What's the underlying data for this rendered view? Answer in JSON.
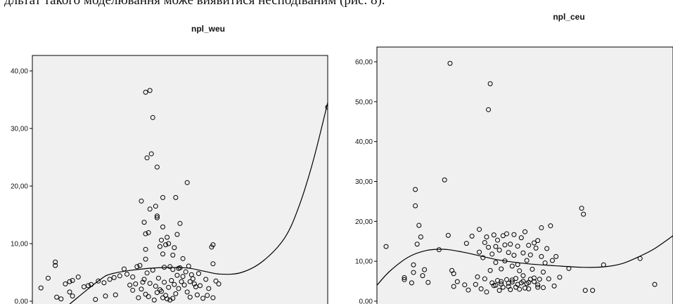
{
  "page_text": {
    "top_line": "дльтат такого моделювання може виявитися несподіваним (рис. 8)."
  },
  "colors": {
    "plot_bg": "#f0f0f0",
    "frame": "#000000",
    "marker": "#000000",
    "curve": "#000000"
  },
  "chart_data": [
    {
      "type": "scatter",
      "title": "npl_weu",
      "xlabel": "",
      "ylabel": "",
      "ylim": [
        -0.5,
        42
      ],
      "xlim": [
        -6,
        200
      ],
      "yticks": [
        "0,00",
        "10,00",
        "20,00",
        "30,00",
        "40,00"
      ],
      "ytick_values": [
        0,
        10,
        20,
        30,
        40
      ],
      "grid": false,
      "fit_curve": {
        "type": "cubic",
        "points": [
          [
            20,
            -0.5
          ],
          [
            40,
            3.5
          ],
          [
            50,
            4.8
          ],
          [
            75,
            5.7
          ],
          [
            100,
            5.8
          ],
          [
            112,
            5.3
          ],
          [
            125,
            4.7
          ],
          [
            140,
            5.0
          ],
          [
            155,
            7.0
          ],
          [
            170,
            11.0
          ],
          [
            180,
            16.5
          ],
          [
            190,
            24.5
          ],
          [
            200,
            34.5
          ]
        ]
      },
      "points": [
        [
          0,
          2.3
        ],
        [
          5,
          4.0
        ],
        [
          10,
          6.8
        ],
        [
          10,
          6.2
        ],
        [
          11,
          0.7
        ],
        [
          17,
          3.0
        ],
        [
          20,
          3.4
        ],
        [
          22,
          3.6
        ],
        [
          20,
          1.6
        ],
        [
          22,
          0.9
        ],
        [
          26,
          4.2
        ],
        [
          14,
          0.4
        ],
        [
          30,
          2.5
        ],
        [
          33,
          2.7
        ],
        [
          35,
          2.9
        ],
        [
          40,
          3.5
        ],
        [
          44,
          3.2
        ],
        [
          48,
          3.8
        ],
        [
          51,
          4.1
        ],
        [
          55,
          4.4
        ],
        [
          38,
          0.3
        ],
        [
          45,
          0.9
        ],
        [
          52,
          1.1
        ],
        [
          58,
          5.6
        ],
        [
          60,
          4.7
        ],
        [
          62,
          2.8
        ],
        [
          64,
          1.9
        ],
        [
          66,
          3.0
        ],
        [
          68,
          0.6
        ],
        [
          70,
          2.1
        ],
        [
          67,
          6.0
        ],
        [
          72,
          3.8
        ],
        [
          74,
          4.9
        ],
        [
          76,
          3.1
        ],
        [
          78,
          5.4
        ],
        [
          80,
          2.6
        ],
        [
          82,
          4.0
        ],
        [
          84,
          1.7
        ],
        [
          86,
          3.3
        ],
        [
          88,
          0.4
        ],
        [
          73,
          1.2
        ],
        [
          75,
          0.8
        ],
        [
          79,
          0.2
        ],
        [
          81,
          1.5
        ],
        [
          83,
          2.0
        ],
        [
          85,
          0.6
        ],
        [
          87,
          1.0
        ],
        [
          89,
          2.4
        ],
        [
          91,
          3.6
        ],
        [
          93,
          2.9
        ],
        [
          90,
          0.2
        ],
        [
          92,
          0.5
        ],
        [
          94,
          1.3
        ],
        [
          96,
          2.2
        ],
        [
          98,
          3.4
        ],
        [
          100,
          2.8
        ],
        [
          102,
          1.6
        ],
        [
          104,
          0.7
        ],
        [
          106,
          3.9
        ],
        [
          108,
          2.5
        ],
        [
          95,
          4.5
        ],
        [
          97,
          5.8
        ],
        [
          99,
          4.3
        ],
        [
          101,
          5.1
        ],
        [
          103,
          6.1
        ],
        [
          105,
          4.6
        ],
        [
          107,
          3.0
        ],
        [
          109,
          1.1
        ],
        [
          111,
          2.7
        ],
        [
          113,
          0.5
        ],
        [
          70,
          17.4
        ],
        [
          72,
          13.7
        ],
        [
          73,
          11.7
        ],
        [
          75,
          11.9
        ],
        [
          73,
          9.0
        ],
        [
          73,
          7.3
        ],
        [
          76,
          16.0
        ],
        [
          80,
          16.5
        ],
        [
          81,
          14.8
        ],
        [
          81,
          14.5
        ],
        [
          83,
          9.5
        ],
        [
          84,
          10.6
        ],
        [
          85,
          8.2
        ],
        [
          85,
          12.9
        ],
        [
          85,
          18.0
        ],
        [
          87,
          9.8
        ],
        [
          88,
          11.1
        ],
        [
          89,
          10.0
        ],
        [
          93,
          9.3
        ],
        [
          95,
          11.6
        ],
        [
          94,
          18.0
        ],
        [
          97,
          13.5
        ],
        [
          102,
          20.6
        ],
        [
          73,
          36.3
        ],
        [
          76,
          36.6
        ],
        [
          78,
          31.9
        ],
        [
          74,
          24.9
        ],
        [
          77,
          25.6
        ],
        [
          81,
          23.3
        ],
        [
          92,
          8.0
        ],
        [
          115,
          3.8
        ],
        [
          117,
          2.2
        ],
        [
          120,
          0.6
        ],
        [
          122,
          3.5
        ],
        [
          124,
          3.0
        ],
        [
          119,
          9.4
        ],
        [
          120,
          9.8
        ],
        [
          120,
          6.5
        ],
        [
          110,
          4.8
        ],
        [
          116,
          1.0
        ],
        [
          64,
          4.2
        ],
        [
          69,
          6.2
        ],
        [
          71,
          3.3
        ],
        [
          86,
          5.9
        ],
        [
          90,
          6.0
        ],
        [
          92,
          5.5
        ],
        [
          96,
          5.7
        ],
        [
          99,
          7.4
        ],
        [
          104,
          3.4
        ],
        [
          200,
          33.7
        ]
      ]
    },
    {
      "type": "scatter",
      "title": "npl_ceu",
      "xlabel": "",
      "ylabel": "",
      "ylim": [
        -0.5,
        63
      ],
      "xlim": [
        -2,
        160
      ],
      "yticks": [
        "0,00",
        "10,00",
        "20,00",
        "30,00",
        "40,00",
        "50,00",
        "60,00"
      ],
      "ytick_values": [
        0,
        10,
        20,
        30,
        40,
        50,
        60
      ],
      "grid": false,
      "fit_curve": {
        "type": "cubic",
        "points": [
          [
            -2,
            4.0
          ],
          [
            5,
            7.5
          ],
          [
            15,
            11.0
          ],
          [
            25,
            12.7
          ],
          [
            35,
            13.0
          ],
          [
            45,
            12.3
          ],
          [
            55,
            11.3
          ],
          [
            65,
            10.3
          ],
          [
            80,
            9.4
          ],
          [
            95,
            8.9
          ],
          [
            110,
            8.5
          ],
          [
            122,
            8.6
          ],
          [
            132,
            9.4
          ],
          [
            142,
            11.3
          ],
          [
            150,
            13.2
          ],
          [
            160,
            16.4
          ]
        ]
      },
      "points": [
        [
          3,
          13.7
        ],
        [
          13,
          5.4
        ],
        [
          13,
          5.9
        ],
        [
          17,
          4.6
        ],
        [
          18,
          7.2
        ],
        [
          18,
          9.1
        ],
        [
          19,
          28.0
        ],
        [
          19,
          23.9
        ],
        [
          20,
          14.3
        ],
        [
          21,
          19.0
        ],
        [
          22,
          16.1
        ],
        [
          23,
          6.4
        ],
        [
          24,
          7.9
        ],
        [
          26,
          4.7
        ],
        [
          32,
          12.9
        ],
        [
          35,
          30.4
        ],
        [
          37,
          16.5
        ],
        [
          38,
          59.6
        ],
        [
          39,
          7.7
        ],
        [
          40,
          3.7
        ],
        [
          40,
          6.9
        ],
        [
          42,
          4.9
        ],
        [
          46,
          4.1
        ],
        [
          47,
          14.5
        ],
        [
          48,
          2.8
        ],
        [
          50,
          16.3
        ],
        [
          52,
          4.2
        ],
        [
          53,
          6.1
        ],
        [
          54,
          12.3
        ],
        [
          54,
          18.0
        ],
        [
          55,
          3.1
        ],
        [
          56,
          10.9
        ],
        [
          57,
          14.7
        ],
        [
          57,
          5.6
        ],
        [
          58,
          2.3
        ],
        [
          58,
          16.1
        ],
        [
          59,
          13.5
        ],
        [
          59,
          48.0
        ],
        [
          60,
          54.5
        ],
        [
          60,
          7.7
        ],
        [
          61,
          4.6
        ],
        [
          61,
          11.8
        ],
        [
          62,
          3.9
        ],
        [
          62,
          16.6
        ],
        [
          63,
          9.7
        ],
        [
          63,
          13.7
        ],
        [
          64,
          5.2
        ],
        [
          64,
          15.3
        ],
        [
          65,
          2.7
        ],
        [
          65,
          12.8
        ],
        [
          66,
          4.3
        ],
        [
          66,
          8.1
        ],
        [
          67,
          16.4
        ],
        [
          67,
          3.5
        ],
        [
          68,
          14.1
        ],
        [
          68,
          10.1
        ],
        [
          69,
          5.4
        ],
        [
          69,
          16.9
        ],
        [
          70,
          3.7
        ],
        [
          70,
          12.2
        ],
        [
          71,
          2.9
        ],
        [
          71,
          14.3
        ],
        [
          72,
          4.8
        ],
        [
          72,
          8.8
        ],
        [
          73,
          11.5
        ],
        [
          73,
          16.7
        ],
        [
          74,
          3.5
        ],
        [
          74,
          5.7
        ],
        [
          75,
          13.8
        ],
        [
          75,
          9.2
        ],
        [
          76,
          3.0
        ],
        [
          76,
          7.6
        ],
        [
          77,
          15.9
        ],
        [
          77,
          4.6
        ],
        [
          78,
          12.1
        ],
        [
          78,
          6.4
        ],
        [
          79,
          3.3
        ],
        [
          79,
          17.4
        ],
        [
          80,
          10.2
        ],
        [
          80,
          4.4
        ],
        [
          81,
          14.0
        ],
        [
          81,
          3.1
        ],
        [
          82,
          5.5
        ],
        [
          82,
          11.6
        ],
        [
          83,
          8.0
        ],
        [
          84,
          4.9
        ],
        [
          84,
          14.6
        ],
        [
          85,
          13.3
        ],
        [
          86,
          3.5
        ],
        [
          86,
          15.2
        ],
        [
          87,
          5.5
        ],
        [
          88,
          18.4
        ],
        [
          88,
          11.2
        ],
        [
          89,
          3.4
        ],
        [
          89,
          7.3
        ],
        [
          90,
          9.6
        ],
        [
          91,
          13.2
        ],
        [
          92,
          5.6
        ],
        [
          93,
          18.9
        ],
        [
          94,
          10.2
        ],
        [
          95,
          3.8
        ],
        [
          96,
          11.2
        ],
        [
          98,
          6.0
        ],
        [
          103,
          8.2
        ],
        [
          110,
          23.3
        ],
        [
          111,
          21.8
        ],
        [
          112,
          2.7
        ],
        [
          116,
          2.7
        ],
        [
          122,
          9.1
        ],
        [
          142,
          10.7
        ],
        [
          63,
          4.0
        ],
        [
          66,
          4.9
        ],
        [
          70,
          4.5
        ],
        [
          72,
          5.3
        ],
        [
          75,
          4.2
        ],
        [
          78,
          5.0
        ],
        [
          81,
          4.7
        ],
        [
          84,
          5.8
        ],
        [
          86,
          4.1
        ],
        [
          150,
          4.2
        ]
      ]
    }
  ]
}
